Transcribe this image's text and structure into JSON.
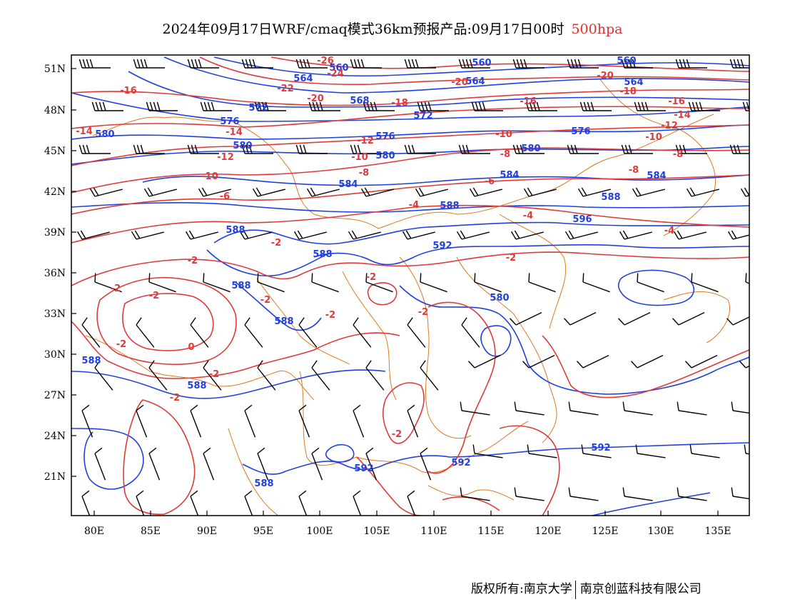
{
  "title": {
    "main": "2024年09月17日WRF/cmaq模式36km预报产品:09月17日00时",
    "level": "500hpa"
  },
  "axes": {
    "lat_labels": [
      "51N",
      "48N",
      "45N",
      "42N",
      "39N",
      "36N",
      "33N",
      "30N",
      "27N",
      "24N",
      "21N"
    ],
    "lon_labels": [
      "80E",
      "85E",
      "90E",
      "95E",
      "100E",
      "105E",
      "110E",
      "115E",
      "120E",
      "125E",
      "130E",
      "135E"
    ]
  },
  "contours": {
    "height": {
      "color": "#2040e0",
      "labels": [
        "560",
        "560",
        "560",
        "564",
        "564",
        "564",
        "568",
        "572",
        "572",
        "576",
        "576",
        "576",
        "580",
        "580",
        "580",
        "580",
        "584",
        "584",
        "584",
        "588",
        "588",
        "588",
        "588",
        "588",
        "588",
        "588",
        "588",
        "588",
        "592",
        "592",
        "592",
        "592",
        "596",
        "580"
      ]
    },
    "temperature": {
      "color": "#e03a3a",
      "labels": [
        "-26",
        "-24",
        "-22",
        "-20",
        "-20",
        "-20",
        "-18",
        "-18",
        "-16",
        "-16",
        "-16",
        "-14",
        "-14",
        "-14",
        "-12",
        "-12",
        "-12",
        "-10",
        "-10",
        "-10",
        "-10",
        "-8",
        "-8",
        "-8",
        "-8",
        "-6",
        "-6",
        "-4",
        "-4",
        "-4",
        "-2",
        "-2",
        "-2",
        "-2",
        "-2",
        "-2",
        "-2",
        "-2",
        "-2",
        "-2",
        "0",
        "-2",
        "-2",
        "-2"
      ]
    },
    "border_color": "#e07820"
  },
  "copyright": {
    "left": "版权所有:南京大学",
    "right": "南京创蓝科技有限公司"
  }
}
